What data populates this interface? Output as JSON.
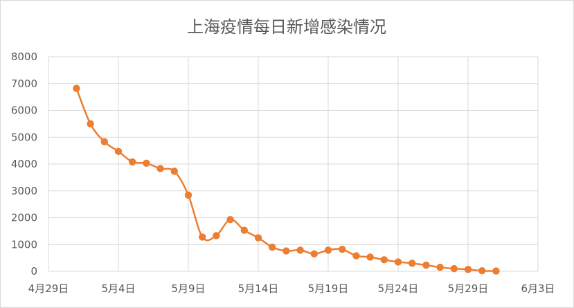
{
  "chart_data": {
    "type": "line",
    "title": "上海疫情每日新增感染情况",
    "xlabel": "",
    "ylabel": "",
    "x_ticks": [
      "4月29日",
      "5月4日",
      "5月9日",
      "5月14日",
      "5月19日",
      "5月24日",
      "5月29日",
      "6月3日"
    ],
    "y_ticks": [
      "0",
      "1000",
      "2000",
      "3000",
      "4000",
      "5000",
      "6000",
      "7000",
      "8000"
    ],
    "xlim": [
      "2022-04-29",
      "2022-06-03"
    ],
    "ylim": [
      0,
      8000
    ],
    "grid": true,
    "legend": "none",
    "series": [
      {
        "color": "#ed7d31",
        "points": [
          {
            "x": "2022-05-01",
            "y": 6820
          },
          {
            "x": "2022-05-02",
            "y": 5500
          },
          {
            "x": "2022-05-03",
            "y": 4830
          },
          {
            "x": "2022-05-04",
            "y": 4470
          },
          {
            "x": "2022-05-05",
            "y": 4080
          },
          {
            "x": "2022-05-06",
            "y": 4030
          },
          {
            "x": "2022-05-07",
            "y": 3830
          },
          {
            "x": "2022-05-08",
            "y": 3730
          },
          {
            "x": "2022-05-09",
            "y": 2840
          },
          {
            "x": "2022-05-10",
            "y": 1280
          },
          {
            "x": "2022-05-11",
            "y": 1330
          },
          {
            "x": "2022-05-12",
            "y": 1930
          },
          {
            "x": "2022-05-13",
            "y": 1530
          },
          {
            "x": "2022-05-14",
            "y": 1250
          },
          {
            "x": "2022-05-15",
            "y": 900
          },
          {
            "x": "2022-05-16",
            "y": 760
          },
          {
            "x": "2022-05-17",
            "y": 790
          },
          {
            "x": "2022-05-18",
            "y": 650
          },
          {
            "x": "2022-05-19",
            "y": 790
          },
          {
            "x": "2022-05-20",
            "y": 820
          },
          {
            "x": "2022-05-21",
            "y": 580
          },
          {
            "x": "2022-05-22",
            "y": 530
          },
          {
            "x": "2022-05-23",
            "y": 430
          },
          {
            "x": "2022-05-24",
            "y": 350
          },
          {
            "x": "2022-05-25",
            "y": 300
          },
          {
            "x": "2022-05-26",
            "y": 230
          },
          {
            "x": "2022-05-27",
            "y": 150
          },
          {
            "x": "2022-05-28",
            "y": 100
          },
          {
            "x": "2022-05-29",
            "y": 70
          },
          {
            "x": "2022-05-30",
            "y": 20
          },
          {
            "x": "2022-05-31",
            "y": 10
          }
        ]
      }
    ]
  }
}
